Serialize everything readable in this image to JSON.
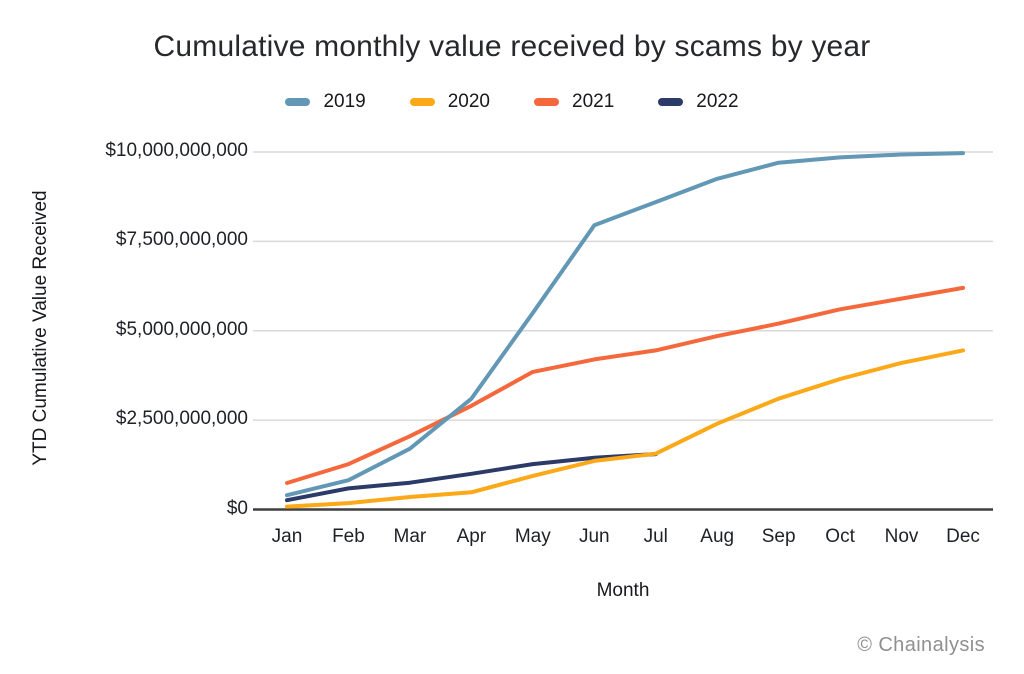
{
  "page": {
    "background": "#ffffff"
  },
  "watermark": "© Chainalysis",
  "colors": {
    "grid": "#d9d9d9",
    "axis": "#3f3f3f",
    "title": "#26282c",
    "tick_text": "#1e2126",
    "watermark": "#909090"
  },
  "chart_data": {
    "type": "line",
    "title": "Cumulative monthly value received by scams by year",
    "xlabel": "Month",
    "ylabel": "YTD Cumulative Value Received",
    "unit": "USD billions",
    "grid": "horizontal",
    "legend_position": "top",
    "x_categories": [
      "Jan",
      "Feb",
      "Mar",
      "Apr",
      "May",
      "Jun",
      "Jul",
      "Aug",
      "Sep",
      "Oct",
      "Nov",
      "Dec"
    ],
    "ylim_billions": [
      0,
      10
    ],
    "y_ticks": [
      {
        "value_billions": 0,
        "label": "$0"
      },
      {
        "value_billions": 2.5,
        "label": "$2,500,000,000"
      },
      {
        "value_billions": 5,
        "label": "$5,000,000,000"
      },
      {
        "value_billions": 7.5,
        "label": "$7,500,000,000"
      },
      {
        "value_billions": 10,
        "label": "$10,000,000,000"
      }
    ],
    "series": [
      {
        "name": "2019",
        "color": "#6298b5",
        "values_billions": [
          0.4,
          0.82,
          1.7,
          3.1,
          5.5,
          7.95,
          8.6,
          9.25,
          9.7,
          9.85,
          9.93,
          9.97
        ]
      },
      {
        "name": "2020",
        "color": "#fba819",
        "values_billions": [
          0.08,
          0.18,
          0.35,
          0.48,
          0.94,
          1.36,
          1.56,
          2.4,
          3.1,
          3.65,
          4.1,
          4.45
        ]
      },
      {
        "name": "2021",
        "color": "#f4683c",
        "values_billions": [
          0.74,
          1.27,
          2.05,
          2.9,
          3.85,
          4.2,
          4.45,
          4.85,
          5.2,
          5.6,
          5.9,
          6.2
        ]
      },
      {
        "name": "2022",
        "color": "#2b3a67",
        "values_billions": [
          0.26,
          0.59,
          0.75,
          1.0,
          1.27,
          1.45,
          1.55,
          null,
          null,
          null,
          null,
          null
        ]
      }
    ]
  }
}
